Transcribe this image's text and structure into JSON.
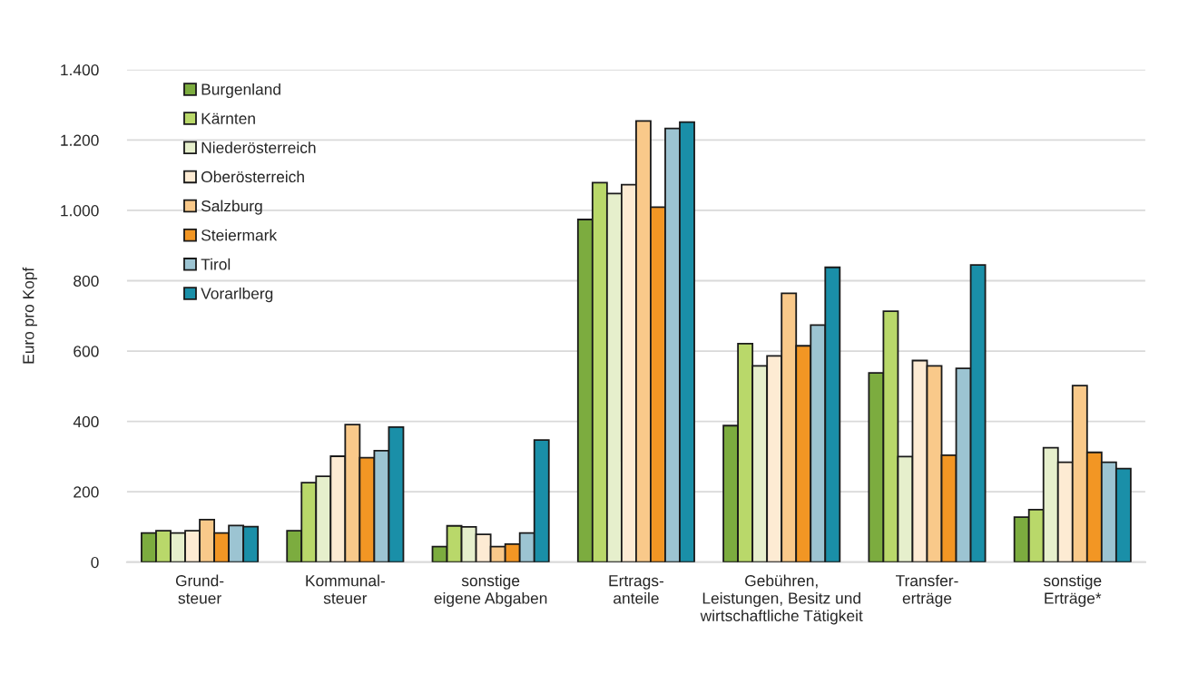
{
  "chart_data": {
    "type": "bar",
    "ylabel": "Euro pro Kopf",
    "categories": [
      "Grund-\nsteuer",
      "Kommunal-\nsteuer",
      "sonstige\neigene Abgaben",
      "Ertrags-\nanteile",
      "Gebühren,\nLeistungen, Besitz und\nwirtschaftliche Tätigkeit",
      "Transfer-\nerträge",
      "sonstige\nErträge*"
    ],
    "series": [
      {
        "name": "Burgenland",
        "color": "#7cac3f",
        "values": [
          83,
          89,
          44,
          974,
          388,
          538,
          128
        ]
      },
      {
        "name": "Kärnten",
        "color": "#b9d86a",
        "values": [
          89,
          226,
          103,
          1079,
          621,
          713,
          149
        ]
      },
      {
        "name": "Niederösterreich",
        "color": "#e6efcc",
        "values": [
          83,
          244,
          100,
          1048,
          558,
          300,
          325
        ]
      },
      {
        "name": "Oberösterreich",
        "color": "#fdebd3",
        "values": [
          89,
          301,
          79,
          1073,
          586,
          573,
          284
        ]
      },
      {
        "name": "Salzburg",
        "color": "#f9c98a",
        "values": [
          121,
          391,
          44,
          1254,
          764,
          558,
          502
        ]
      },
      {
        "name": "Steiermark",
        "color": "#f29624",
        "values": [
          83,
          297,
          51,
          1009,
          615,
          304,
          312
        ]
      },
      {
        "name": "Tirol",
        "color": "#9cc4d2",
        "values": [
          104,
          317,
          83,
          1233,
          674,
          551,
          284
        ]
      },
      {
        "name": "Vorarlberg",
        "color": "#1a8fa8",
        "values": [
          101,
          384,
          347,
          1251,
          838,
          845,
          266
        ]
      }
    ],
    "ylim": [
      0,
      1400
    ],
    "yticks": [
      0,
      200,
      400,
      600,
      800,
      {
        "value": 1000,
        "label": "1.000"
      },
      {
        "value": 1200,
        "label": "1.200"
      },
      {
        "value": 1400,
        "label": "1.400"
      }
    ],
    "grid": "y",
    "legend": "top left"
  }
}
